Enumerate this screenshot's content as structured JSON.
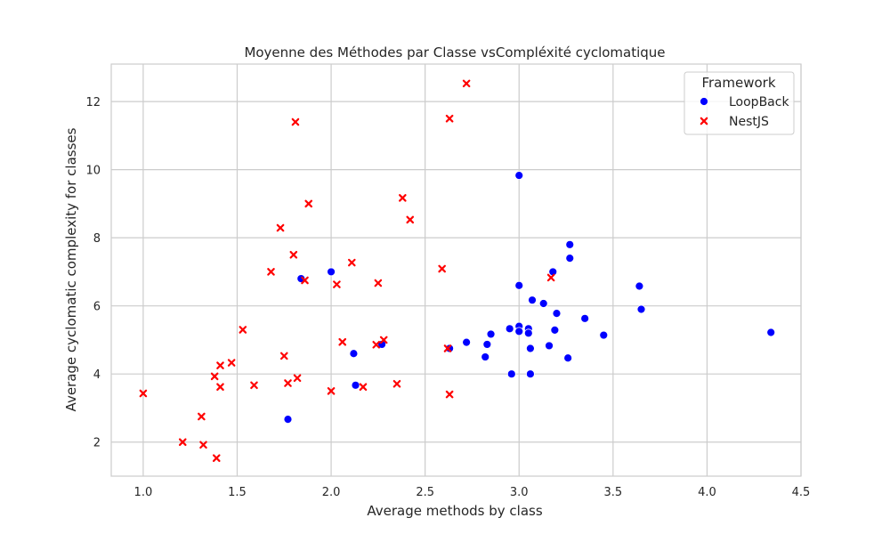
{
  "chart_data": {
    "type": "scatter",
    "title": "Moyenne des Méthodes par Classe vsCompléxité cyclomatique",
    "xlabel": "Average methods by class",
    "ylabel": "Average cyclomatic complexity for classes",
    "xlim": [
      0.83,
      4.5
    ],
    "ylim": [
      1.0,
      13.1
    ],
    "xticks": [
      1.0,
      1.5,
      2.0,
      2.5,
      3.0,
      3.5,
      4.0,
      4.5
    ],
    "xtick_labels": [
      "1.0",
      "1.5",
      "2.0",
      "2.5",
      "3.0",
      "3.5",
      "4.0",
      "4.5"
    ],
    "yticks": [
      2,
      4,
      6,
      8,
      10,
      12
    ],
    "ytick_labels": [
      "2",
      "4",
      "6",
      "8",
      "10",
      "12"
    ],
    "grid": true,
    "legend": {
      "title": "Framework",
      "position": "top-right"
    },
    "series": [
      {
        "name": "LoopBack",
        "color": "#0000ff",
        "marker": "circle",
        "points": [
          [
            1.77,
            2.67
          ],
          [
            1.84,
            6.8
          ],
          [
            2.0,
            7.0
          ],
          [
            2.12,
            4.6
          ],
          [
            2.13,
            3.67
          ],
          [
            2.27,
            4.87
          ],
          [
            2.63,
            4.75
          ],
          [
            2.72,
            4.93
          ],
          [
            2.82,
            4.5
          ],
          [
            2.83,
            4.87
          ],
          [
            2.85,
            5.17
          ],
          [
            2.95,
            5.33
          ],
          [
            2.96,
            4.0
          ],
          [
            3.0,
            9.83
          ],
          [
            3.0,
            6.6
          ],
          [
            3.0,
            5.4
          ],
          [
            3.0,
            5.25
          ],
          [
            3.05,
            5.33
          ],
          [
            3.05,
            5.2
          ],
          [
            3.06,
            4.75
          ],
          [
            3.06,
            4.0
          ],
          [
            3.07,
            6.17
          ],
          [
            3.13,
            6.07
          ],
          [
            3.16,
            4.83
          ],
          [
            3.18,
            7.0
          ],
          [
            3.19,
            5.29
          ],
          [
            3.2,
            5.78
          ],
          [
            3.26,
            4.47
          ],
          [
            3.27,
            7.8
          ],
          [
            3.27,
            7.4
          ],
          [
            3.35,
            5.63
          ],
          [
            3.45,
            5.14
          ],
          [
            3.64,
            6.58
          ],
          [
            3.65,
            5.9
          ],
          [
            4.34,
            5.22
          ]
        ]
      },
      {
        "name": "NestJS",
        "color": "#ff0000",
        "marker": "x",
        "points": [
          [
            1.0,
            3.43
          ],
          [
            1.21,
            2.0
          ],
          [
            1.31,
            2.75
          ],
          [
            1.32,
            1.92
          ],
          [
            1.38,
            3.93
          ],
          [
            1.39,
            1.53
          ],
          [
            1.41,
            3.62
          ],
          [
            1.41,
            4.25
          ],
          [
            1.47,
            4.33
          ],
          [
            1.53,
            5.3
          ],
          [
            1.59,
            3.67
          ],
          [
            1.68,
            7.0
          ],
          [
            1.73,
            8.29
          ],
          [
            1.75,
            4.53
          ],
          [
            1.77,
            3.73
          ],
          [
            1.8,
            7.5
          ],
          [
            1.81,
            11.4
          ],
          [
            1.82,
            3.88
          ],
          [
            1.86,
            6.75
          ],
          [
            1.88,
            9.0
          ],
          [
            2.0,
            3.5
          ],
          [
            2.03,
            6.63
          ],
          [
            2.06,
            4.94
          ],
          [
            2.11,
            7.27
          ],
          [
            2.17,
            3.62
          ],
          [
            2.24,
            4.86
          ],
          [
            2.25,
            6.67
          ],
          [
            2.28,
            5.0
          ],
          [
            2.35,
            3.71
          ],
          [
            2.38,
            9.17
          ],
          [
            2.42,
            8.53
          ],
          [
            2.59,
            7.09
          ],
          [
            2.62,
            4.75
          ],
          [
            2.63,
            3.4
          ],
          [
            2.63,
            11.5
          ],
          [
            2.72,
            12.53
          ],
          [
            3.17,
            6.83
          ]
        ]
      }
    ]
  }
}
